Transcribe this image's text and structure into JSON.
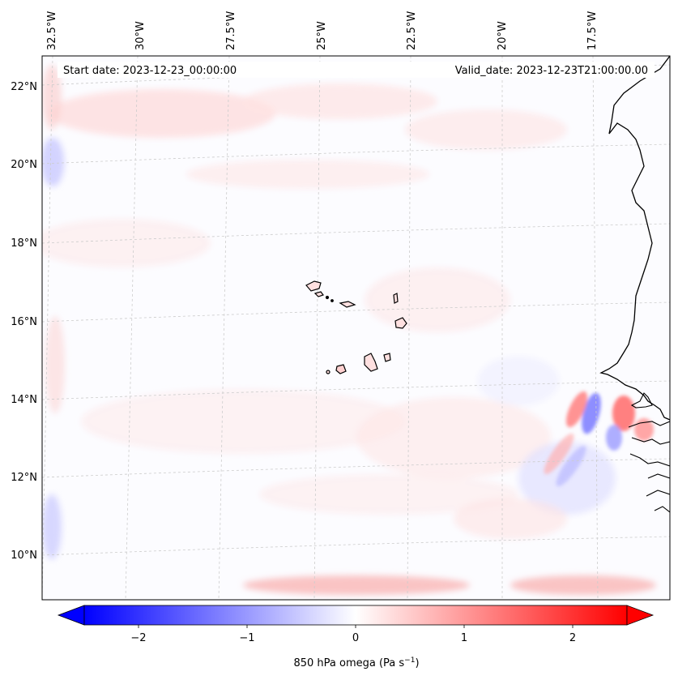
{
  "map": {
    "start_date_text": "Start date: 2023-12-23_00:00:00",
    "valid_date_text": "Valid_date: 2023-12-23T21:00:00.00",
    "lon_labels": [
      "32.5°W",
      "30°W",
      "27.5°W",
      "25°W",
      "22.5°W",
      "20°W",
      "17.5°W"
    ],
    "lat_labels": [
      "22°N",
      "20°N",
      "18°N",
      "16°N",
      "14°N",
      "12°N",
      "10°N"
    ],
    "lon_range": [
      -32.8,
      -15.5
    ],
    "lat_range": [
      8.9,
      22.8
    ],
    "field": "850 hPa omega",
    "features": [
      "Cape Verde islands",
      "West African coastline (Mauritania, Senegal, Gambia, Guinea-Bissau)"
    ],
    "gridlines": true
  },
  "colorbar": {
    "label": "850 hPa omega (Pa s",
    "unit_exponent": "−1",
    "label_close": ")",
    "ticks": [
      "−2",
      "−1",
      "0",
      "1",
      "2"
    ],
    "tick_values": [
      -2,
      -1,
      0,
      1,
      2
    ],
    "range": [
      -2.5,
      2.5
    ],
    "colormap": "bwr",
    "extend": "both",
    "colors": {
      "low": "#0000ff",
      "mid": "#ffffff",
      "high": "#ff0000"
    }
  }
}
